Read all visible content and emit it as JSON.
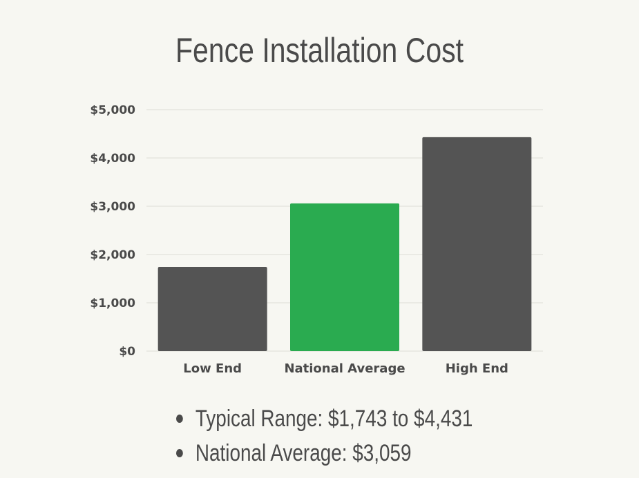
{
  "chart_data": {
    "type": "bar",
    "title": "Fence Installation Cost",
    "categories": [
      "Low End",
      "National Average",
      "High End"
    ],
    "values": [
      1743,
      3059,
      4431
    ],
    "colors": [
      "#545454",
      "#2aab50",
      "#545454"
    ],
    "ylim": [
      0,
      5000
    ],
    "yticks": [
      0,
      1000,
      2000,
      3000,
      4000,
      5000
    ],
    "ytick_labels": [
      "$0",
      "$1,000",
      "$2,000",
      "$3,000",
      "$4,000",
      "$5,000"
    ],
    "grid": true,
    "xlabel": "",
    "ylabel": ""
  },
  "notes": [
    "Typical Range: $1,743 to $4,431",
    "National Average: $3,059"
  ]
}
